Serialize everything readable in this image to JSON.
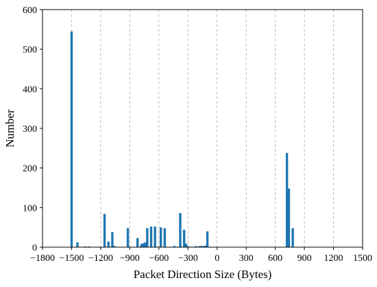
{
  "chart_data": {
    "type": "bar",
    "title": "",
    "xlabel": "Packet Direction Size (Bytes)",
    "ylabel": "Number",
    "xlim": [
      -1800,
      1500
    ],
    "ylim": [
      0,
      600
    ],
    "x_ticks": [
      -1800,
      -1500,
      -1200,
      -900,
      -600,
      -300,
      0,
      300,
      600,
      900,
      1200,
      1500
    ],
    "y_ticks": [
      0,
      100,
      200,
      300,
      400,
      500,
      600
    ],
    "x_grid": true,
    "x_grid_style": "dashed",
    "y_grid": false,
    "bar_color": "#1f77b4",
    "series": [
      {
        "x": [
          -1500,
          -1440,
          -1360,
          -1320,
          -1160,
          -1120,
          -1080,
          -1060,
          -920,
          -820,
          -780,
          -760,
          -740,
          -720,
          -680,
          -640,
          -580,
          -540,
          -440,
          -380,
          -340,
          -320,
          -300,
          -220,
          -180,
          -160,
          -140,
          -120,
          -100,
          720,
          740,
          780
        ],
        "values": [
          545,
          12,
          2,
          2,
          84,
          14,
          38,
          3,
          48,
          23,
          8,
          10,
          12,
          48,
          52,
          52,
          50,
          48,
          3,
          86,
          44,
          9,
          2,
          3,
          3,
          3,
          3,
          4,
          40,
          238,
          148,
          48
        ]
      }
    ]
  }
}
